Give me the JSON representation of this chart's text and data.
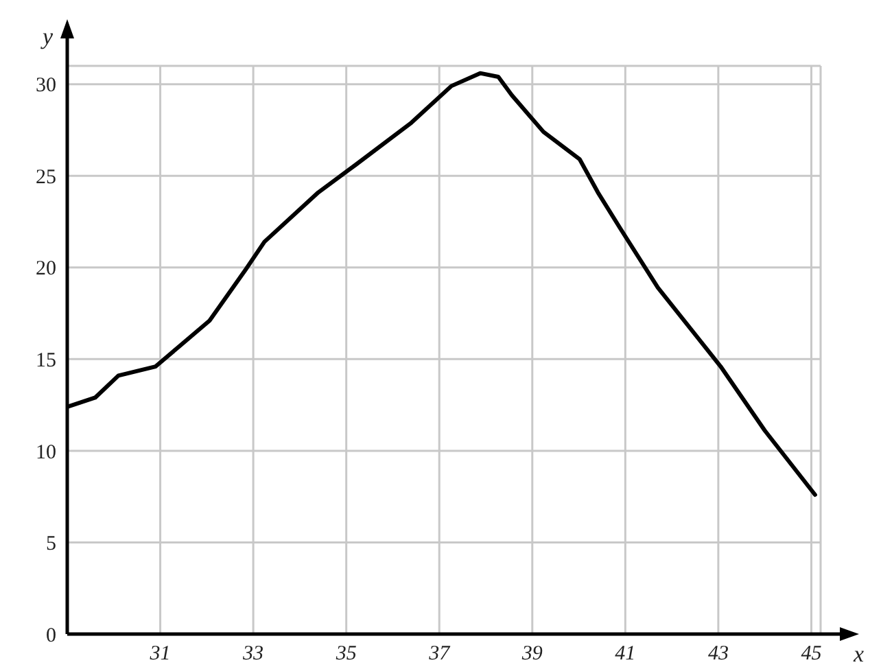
{
  "chart_data": {
    "type": "line",
    "xlabel": "x",
    "ylabel": "y",
    "x": [
      29,
      29.6,
      30.1,
      30.9,
      32.06,
      32.84,
      33.24,
      34.4,
      35.2,
      36.4,
      37.26,
      37.88,
      38.27,
      38.56,
      39.24,
      40.02,
      40.41,
      40.9,
      41.7,
      43.05,
      44,
      45.08
    ],
    "series": [
      {
        "color": "#000000",
        "values": [
          12.4,
          12.9,
          14.1,
          14.6,
          17.1,
          19.9,
          21.4,
          24.1,
          25.6,
          27.9,
          29.9,
          30.6,
          30.4,
          29.4,
          27.4,
          25.9,
          24.1,
          22.1,
          18.9,
          14.6,
          11.1,
          7.6
        ]
      }
    ],
    "xlim": [
      29,
      45.2
    ],
    "xticks": [
      31,
      33,
      35,
      37,
      39,
      41,
      43,
      45
    ],
    "ylim": [
      0,
      31
    ],
    "yticks": [
      0,
      5,
      10,
      15,
      20,
      25,
      30
    ],
    "grid": true,
    "marker": "none",
    "line_style": "solid"
  }
}
